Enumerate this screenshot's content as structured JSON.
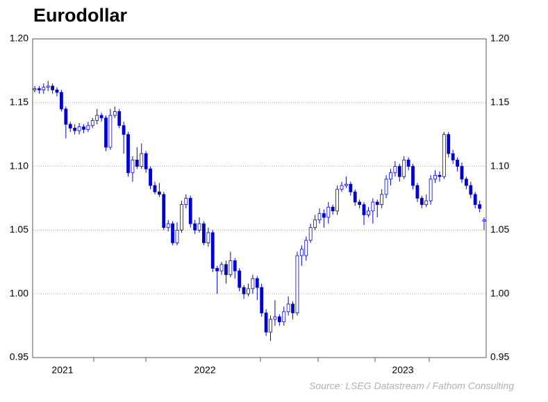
{
  "chart_data": {
    "type": "candlestick",
    "title": "Eurodollar",
    "source": "Source: LSEG Datastream / Fathom Consulting",
    "year_labels": [
      "2021",
      "2022",
      "2023"
    ],
    "up_color": "#ffffff",
    "down_color": "#0000cc",
    "outline_color": "#0000cc",
    "grid": true,
    "ylim": [
      0.95,
      1.2
    ],
    "yticks": [
      {
        "value": 0.95,
        "label": "0.95"
      },
      {
        "value": 1.0,
        "label": "1.00"
      },
      {
        "value": 1.05,
        "label": "1.05"
      },
      {
        "value": 1.1,
        "label": "1.10"
      },
      {
        "value": 1.15,
        "label": "1.15"
      },
      {
        "value": 1.2,
        "label": "1.20"
      }
    ],
    "ohlc": [
      [
        1.16,
        1.163,
        1.158,
        1.161
      ],
      [
        1.161,
        1.163,
        1.157,
        1.16
      ],
      [
        1.16,
        1.165,
        1.157,
        1.162
      ],
      [
        1.162,
        1.167,
        1.159,
        1.163
      ],
      [
        1.163,
        1.165,
        1.157,
        1.16
      ],
      [
        1.16,
        1.162,
        1.155,
        1.158
      ],
      [
        1.158,
        1.16,
        1.143,
        1.145
      ],
      [
        1.145,
        1.147,
        1.122,
        1.133
      ],
      [
        1.133,
        1.135,
        1.127,
        1.13
      ],
      [
        1.13,
        1.133,
        1.125,
        1.128
      ],
      [
        1.128,
        1.134,
        1.125,
        1.131
      ],
      [
        1.131,
        1.133,
        1.126,
        1.129
      ],
      [
        1.129,
        1.135,
        1.127,
        1.132
      ],
      [
        1.132,
        1.138,
        1.13,
        1.136
      ],
      [
        1.136,
        1.145,
        1.133,
        1.14
      ],
      [
        1.14,
        1.142,
        1.135,
        1.138
      ],
      [
        1.138,
        1.14,
        1.112,
        1.115
      ],
      [
        1.115,
        1.145,
        1.113,
        1.14
      ],
      [
        1.14,
        1.147,
        1.138,
        1.143
      ],
      [
        1.143,
        1.145,
        1.13,
        1.132
      ],
      [
        1.132,
        1.135,
        1.11,
        1.125
      ],
      [
        1.125,
        1.127,
        1.092,
        1.095
      ],
      [
        1.095,
        1.108,
        1.088,
        1.105
      ],
      [
        1.105,
        1.115,
        1.098,
        1.1
      ],
      [
        1.1,
        1.118,
        1.098,
        1.11
      ],
      [
        1.11,
        1.112,
        1.095,
        1.098
      ],
      [
        1.098,
        1.1,
        1.082,
        1.085
      ],
      [
        1.085,
        1.088,
        1.078,
        1.08
      ],
      [
        1.08,
        1.087,
        1.076,
        1.078
      ],
      [
        1.078,
        1.08,
        1.05,
        1.052
      ],
      [
        1.052,
        1.058,
        1.049,
        1.055
      ],
      [
        1.055,
        1.057,
        1.038,
        1.04
      ],
      [
        1.04,
        1.056,
        1.038,
        1.05
      ],
      [
        1.05,
        1.073,
        1.048,
        1.07
      ],
      [
        1.07,
        1.078,
        1.067,
        1.075
      ],
      [
        1.075,
        1.077,
        1.052,
        1.055
      ],
      [
        1.055,
        1.058,
        1.047,
        1.05
      ],
      [
        1.05,
        1.06,
        1.048,
        1.055
      ],
      [
        1.055,
        1.057,
        1.038,
        1.04
      ],
      [
        1.04,
        1.052,
        1.037,
        1.048
      ],
      [
        1.048,
        1.05,
        1.017,
        1.02
      ],
      [
        1.02,
        1.022,
        1.0,
        1.018
      ],
      [
        1.018,
        1.025,
        1.015,
        1.023
      ],
      [
        1.023,
        1.026,
        1.008,
        1.015
      ],
      [
        1.015,
        1.033,
        1.013,
        1.026
      ],
      [
        1.026,
        1.028,
        1.012,
        1.018
      ],
      [
        1.018,
        1.02,
        1.002,
        1.005
      ],
      [
        1.005,
        1.007,
        0.996,
        1.0
      ],
      [
        1.0,
        1.008,
        0.998,
        1.004
      ],
      [
        1.004,
        1.015,
        1.0,
        1.012
      ],
      [
        1.012,
        1.014,
        0.995,
        1.005
      ],
      [
        1.005,
        1.008,
        0.982,
        0.985
      ],
      [
        0.985,
        0.988,
        0.967,
        0.97
      ],
      [
        0.97,
        0.983,
        0.963,
        0.98
      ],
      [
        0.98,
        0.995,
        0.975,
        0.982
      ],
      [
        0.982,
        0.984,
        0.975,
        0.978
      ],
      [
        0.978,
        0.99,
        0.975,
        0.986
      ],
      [
        0.986,
        0.998,
        0.983,
        0.992
      ],
      [
        0.992,
        0.994,
        0.98,
        0.985
      ],
      [
        0.985,
        1.033,
        0.983,
        1.03
      ],
      [
        1.03,
        1.038,
        1.022,
        1.035
      ],
      [
        1.03,
        1.045,
        1.026,
        1.042
      ],
      [
        1.042,
        1.055,
        1.04,
        1.052
      ],
      [
        1.052,
        1.062,
        1.05,
        1.058
      ],
      [
        1.058,
        1.067,
        1.055,
        1.063
      ],
      [
        1.063,
        1.066,
        1.052,
        1.06
      ],
      [
        1.06,
        1.072,
        1.055,
        1.068
      ],
      [
        1.068,
        1.07,
        1.062,
        1.065
      ],
      [
        1.065,
        1.085,
        1.062,
        1.082
      ],
      [
        1.082,
        1.088,
        1.08,
        1.085
      ],
      [
        1.085,
        1.092,
        1.083,
        1.086
      ],
      [
        1.086,
        1.088,
        1.077,
        1.08
      ],
      [
        1.08,
        1.082,
        1.069,
        1.072
      ],
      [
        1.072,
        1.074,
        1.067,
        1.07
      ],
      [
        1.07,
        1.072,
        1.054,
        1.062
      ],
      [
        1.062,
        1.068,
        1.06,
        1.065
      ],
      [
        1.065,
        1.075,
        1.055,
        1.072
      ],
      [
        1.072,
        1.074,
        1.06,
        1.07
      ],
      [
        1.07,
        1.082,
        1.067,
        1.078
      ],
      [
        1.078,
        1.093,
        1.075,
        1.09
      ],
      [
        1.09,
        1.098,
        1.085,
        1.095
      ],
      [
        1.095,
        1.104,
        1.092,
        1.1
      ],
      [
        1.1,
        1.102,
        1.088,
        1.092
      ],
      [
        1.092,
        1.108,
        1.09,
        1.105
      ],
      [
        1.105,
        1.107,
        1.097,
        1.1
      ],
      [
        1.1,
        1.102,
        1.082,
        1.085
      ],
      [
        1.085,
        1.087,
        1.072,
        1.075
      ],
      [
        1.075,
        1.077,
        1.067,
        1.07
      ],
      [
        1.07,
        1.078,
        1.068,
        1.073
      ],
      [
        1.073,
        1.093,
        1.07,
        1.09
      ],
      [
        1.09,
        1.097,
        1.087,
        1.093
      ],
      [
        1.093,
        1.096,
        1.088,
        1.092
      ],
      [
        1.092,
        1.127,
        1.09,
        1.125
      ],
      [
        1.125,
        1.127,
        1.107,
        1.11
      ],
      [
        1.11,
        1.113,
        1.102,
        1.105
      ],
      [
        1.105,
        1.107,
        1.096,
        1.1
      ],
      [
        1.1,
        1.103,
        1.087,
        1.09
      ],
      [
        1.09,
        1.092,
        1.082,
        1.085
      ],
      [
        1.085,
        1.088,
        1.075,
        1.078
      ],
      [
        1.078,
        1.08,
        1.067,
        1.07
      ],
      [
        1.07,
        1.073,
        1.064,
        1.067
      ],
      [
        1.057,
        1.06,
        1.05,
        1.058
      ]
    ]
  }
}
